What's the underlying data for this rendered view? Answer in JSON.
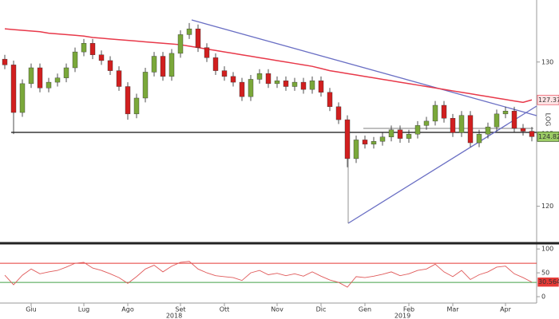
{
  "chart_data": {
    "type": "candlestick",
    "categories": [
      null,
      null,
      null,
      "Giu",
      null,
      null,
      null,
      null,
      null,
      "Lug",
      null,
      null,
      null,
      null,
      "Ago",
      null,
      null,
      null,
      null,
      null,
      "Set",
      null,
      null,
      null,
      null,
      "Ott",
      null,
      null,
      null,
      null,
      null,
      "Nov",
      null,
      null,
      null,
      null,
      "Dic",
      null,
      null,
      null,
      null,
      "Gen",
      null,
      null,
      null,
      null,
      "Feb",
      null,
      null,
      null,
      null,
      "Mar",
      null,
      null,
      null,
      null,
      null,
      "Apr",
      null,
      null,
      null
    ],
    "x_year_labels": [
      {
        "label": "2018",
        "category": "Set"
      },
      {
        "label": "2019",
        "category": "Feb"
      }
    ],
    "open": [
      130.2,
      129.8,
      126.5,
      128.5,
      129.6,
      128.2,
      128.6,
      128.9,
      129.6,
      130.7,
      131.3,
      130.5,
      130.1,
      129.4,
      128.3,
      126.4,
      127.5,
      129.3,
      130.4,
      129.0,
      130.6,
      131.9,
      132.3,
      131.0,
      130.3,
      129.4,
      129.0,
      128.6,
      127.6,
      128.8,
      129.2,
      128.5,
      128.7,
      128.3,
      128.6,
      128.1,
      128.7,
      127.9,
      126.9,
      126.0,
      123.3,
      124.6,
      124.3,
      124.5,
      124.8,
      125.3,
      124.7,
      125.0,
      125.6,
      125.9,
      127.0,
      126.1,
      125.1,
      126.3,
      124.4,
      125.0,
      125.5,
      126.4,
      126.6,
      125.4,
      125.2
    ],
    "high": [
      130.5,
      130.1,
      128.8,
      129.9,
      129.9,
      128.9,
      129.2,
      129.9,
      131.0,
      131.6,
      131.6,
      130.8,
      130.4,
      129.7,
      128.6,
      127.8,
      129.6,
      130.7,
      130.7,
      130.9,
      132.2,
      132.7,
      132.6,
      131.3,
      130.6,
      129.7,
      129.3,
      128.9,
      129.1,
      129.5,
      129.5,
      129.0,
      129.0,
      128.9,
      128.9,
      129.0,
      129.0,
      128.2,
      127.2,
      126.3,
      124.9,
      124.9,
      124.8,
      125.1,
      125.6,
      125.6,
      125.3,
      125.9,
      126.2,
      127.3,
      127.3,
      126.4,
      126.6,
      126.6,
      125.3,
      125.8,
      126.7,
      126.9,
      126.9,
      125.7,
      125.5
    ],
    "low": [
      129.5,
      125.0,
      126.2,
      128.2,
      127.9,
      127.9,
      128.3,
      128.6,
      129.3,
      130.4,
      130.2,
      129.8,
      129.1,
      128.0,
      126.0,
      126.1,
      127.2,
      129.0,
      128.7,
      128.7,
      130.3,
      131.6,
      130.7,
      130.0,
      129.1,
      128.7,
      128.3,
      127.3,
      127.3,
      128.5,
      128.2,
      128.2,
      128.0,
      128.0,
      127.8,
      127.8,
      127.6,
      126.6,
      125.7,
      122.7,
      123.0,
      124.0,
      124.0,
      124.2,
      124.5,
      124.4,
      124.4,
      124.7,
      125.3,
      125.6,
      125.8,
      124.8,
      124.8,
      124.1,
      124.1,
      124.7,
      125.2,
      126.1,
      125.1,
      124.9,
      124.5
    ],
    "close": [
      129.8,
      126.5,
      128.5,
      129.6,
      128.2,
      128.6,
      128.9,
      129.6,
      130.7,
      131.3,
      130.5,
      130.1,
      129.4,
      128.3,
      126.4,
      127.5,
      129.3,
      130.4,
      129.0,
      130.6,
      131.9,
      132.3,
      131.0,
      130.3,
      129.4,
      129.0,
      128.6,
      127.6,
      128.8,
      129.2,
      128.5,
      128.7,
      128.3,
      128.6,
      128.1,
      128.7,
      127.9,
      126.9,
      126.0,
      123.3,
      124.6,
      124.3,
      124.5,
      124.8,
      125.3,
      124.7,
      125.0,
      125.6,
      125.9,
      127.0,
      126.1,
      125.1,
      126.3,
      124.4,
      125.0,
      125.5,
      126.4,
      126.6,
      125.4,
      125.2,
      124.8232
    ],
    "up_color": "#7aa83a",
    "down_color": "#d11f1f",
    "tag_color": "#9ccc65",
    "moving_average": {
      "color": "#e8394a",
      "values": [
        132.3,
        132.25,
        132.2,
        132.15,
        132.1,
        132.0,
        131.95,
        131.9,
        131.85,
        131.8,
        131.7,
        131.65,
        131.6,
        131.55,
        131.5,
        131.45,
        131.4,
        131.35,
        131.3,
        131.25,
        131.2,
        131.1,
        131.0,
        130.9,
        130.8,
        130.7,
        130.6,
        130.5,
        130.4,
        130.3,
        130.2,
        130.1,
        130.0,
        129.9,
        129.8,
        129.7,
        129.55,
        129.4,
        129.3,
        129.2,
        129.1,
        129.0,
        128.9,
        128.8,
        128.7,
        128.6,
        128.5,
        128.4,
        128.3,
        128.2,
        128.1,
        128.0,
        127.9,
        127.8,
        127.7,
        127.6,
        127.5,
        127.4,
        127.3,
        127.2,
        127.3734
      ]
    },
    "ylim": [
      117.6,
      134.3
    ],
    "yticks": [
      120,
      125,
      130
    ],
    "scale_label": "LOG",
    "rsi": {
      "color": "#e05a5a",
      "values": [
        45,
        25,
        45,
        58,
        48,
        52,
        55,
        62,
        70,
        72,
        60,
        55,
        48,
        40,
        28,
        42,
        58,
        66,
        52,
        64,
        72,
        74,
        58,
        50,
        44,
        42,
        40,
        34,
        50,
        55,
        46,
        49,
        44,
        48,
        43,
        52,
        43,
        35,
        30,
        20,
        42,
        40,
        43,
        47,
        52,
        44,
        48,
        55,
        58,
        68,
        52,
        42,
        55,
        36,
        46,
        52,
        62,
        64,
        48,
        40,
        30.5644
      ],
      "ylim": [
        -10,
        107
      ],
      "yticks": [
        0,
        50,
        100
      ],
      "levels": [
        {
          "value": 70,
          "color": "#e53935"
        },
        {
          "value": 30,
          "color": "#43a047"
        }
      ]
    }
  }
}
